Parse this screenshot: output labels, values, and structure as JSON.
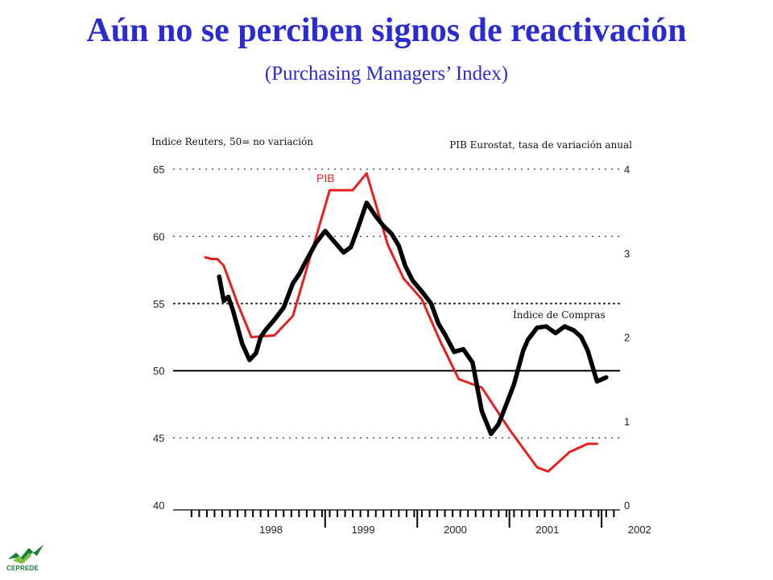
{
  "header": {
    "title": "Aún no se perciben signos de reactivación",
    "subtitle": "(Purchasing Managers’ Index)"
  },
  "logo": {
    "text": "CEPREDE",
    "icon": "ceprede-logo-icon",
    "color": "#1a7a3a"
  },
  "colors": {
    "title": "#2b2bd4",
    "pib": "#e62020",
    "index": "#000000"
  },
  "chart_data": {
    "type": "line",
    "left_axis_label": "Indice Reuters, 50= no variación",
    "right_axis_label": "PIB Eurostat, tasa de variación anual",
    "ylim_left": [
      40,
      65
    ],
    "ylim_right": [
      0,
      4
    ],
    "yticks_left": [
      "65",
      "60",
      "55",
      "50",
      "45",
      "40"
    ],
    "yticks_right": [
      "4",
      "3",
      "2",
      "1",
      "0"
    ],
    "xlim": [
      1997.7,
      2002.2
    ],
    "xticks": [
      {
        "label": "1998",
        "x": 1998.0
      },
      {
        "label": "1999",
        "x": 1999.0
      },
      {
        "label": "2000",
        "x": 2000.0
      },
      {
        "label": "2001",
        "x": 2001.0
      },
      {
        "label": "2002",
        "x": 2002.0
      }
    ],
    "gridlines_left": [
      65,
      60,
      55,
      45
    ],
    "reference_line_left": 50,
    "series": [
      {
        "name": "PIB",
        "axis": "right",
        "color": "#e62020",
        "x": [
          1997.7,
          1997.77,
          1997.83,
          1997.9,
          1998.05,
          1998.2,
          1998.45,
          1998.65,
          1999.05,
          1999.3,
          1999.45,
          1999.68,
          1999.85,
          2000.05,
          2000.25,
          2000.45,
          2000.7,
          2001.0,
          2001.3,
          2001.42,
          2001.65,
          2001.85,
          2001.95
        ],
        "values": [
          2.95,
          2.93,
          2.93,
          2.85,
          2.4,
          2.0,
          2.02,
          2.25,
          3.75,
          3.75,
          3.95,
          3.1,
          2.7,
          2.45,
          1.95,
          1.5,
          1.4,
          0.9,
          0.45,
          0.4,
          0.63,
          0.73,
          0.73
        ]
      },
      {
        "name": "Índice de Compras",
        "axis": "left",
        "color": "#000000",
        "x": [
          1997.85,
          1997.9,
          1997.95,
          1998.0,
          1998.1,
          1998.18,
          1998.25,
          1998.3,
          1998.35,
          1998.45,
          1998.55,
          1998.65,
          1998.72,
          1998.78,
          1998.9,
          1999.0,
          1999.1,
          1999.2,
          1999.28,
          1999.35,
          1999.45,
          1999.55,
          1999.63,
          1999.72,
          1999.8,
          1999.87,
          1999.95,
          2000.05,
          2000.15,
          2000.23,
          2000.3,
          2000.4,
          2000.5,
          2000.6,
          2000.7,
          2000.8,
          2000.88,
          2000.95,
          2001.05,
          2001.15,
          2001.2,
          2001.3,
          2001.4,
          2001.5,
          2001.6,
          2001.7,
          2001.78,
          2001.85,
          2001.95,
          2002.05
        ],
        "values": [
          57,
          55.2,
          55.5,
          54.5,
          52,
          50.8,
          51.3,
          52.5,
          53,
          53.8,
          54.7,
          56.5,
          57.2,
          58,
          59.5,
          60.4,
          59.6,
          58.8,
          59.2,
          60.5,
          62.5,
          61.5,
          60.8,
          60.2,
          59.3,
          57.8,
          56.7,
          55.9,
          55,
          53.5,
          52.7,
          51.4,
          51.6,
          50.6,
          47,
          45.3,
          46,
          47.2,
          49,
          51.5,
          52.3,
          53.2,
          53.3,
          52.8,
          53.3,
          53,
          52.5,
          51.5,
          49.2,
          49.5
        ]
      }
    ]
  }
}
